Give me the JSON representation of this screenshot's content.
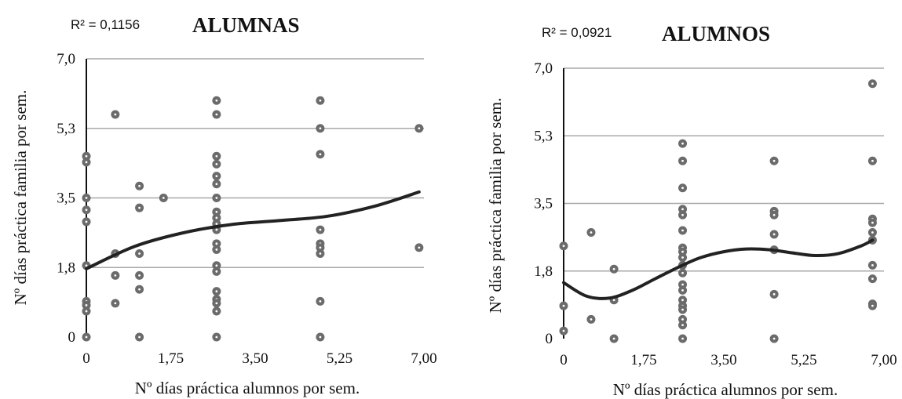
{
  "chart_data": [
    {
      "type": "scatter",
      "title": "ALUMNAS",
      "r2_label": "R² = 0,1156",
      "xlabel": "Nº días práctica alumnos por sem.",
      "ylabel": "Nº días práctica familia por sem.",
      "xlim": [
        0,
        7
      ],
      "ylim": [
        0,
        7
      ],
      "xticks": [
        "0",
        "1,75",
        "3,50",
        "5,25",
        "7,00"
      ],
      "xtick_values": [
        0,
        1.75,
        3.5,
        5.25,
        7
      ],
      "yticks": [
        "0",
        "1,8",
        "3,5",
        "5,3",
        "7,0"
      ],
      "ytick_values": [
        0,
        1.75,
        3.5,
        5.25,
        7
      ],
      "grid": "horizontal",
      "point_color": "#6b6b6b",
      "trend_color": "#222222",
      "points": [
        [
          0,
          4.55
        ],
        [
          0,
          4.4
        ],
        [
          0,
          3.5
        ],
        [
          0,
          3.2
        ],
        [
          0,
          2.9
        ],
        [
          0,
          1.8
        ],
        [
          0,
          0.9
        ],
        [
          0,
          0.8
        ],
        [
          0,
          0.65
        ],
        [
          0,
          0
        ],
        [
          0.6,
          5.6
        ],
        [
          0.6,
          2.1
        ],
        [
          0.6,
          1.55
        ],
        [
          0.6,
          0.85
        ],
        [
          1.1,
          3.8
        ],
        [
          1.1,
          3.25
        ],
        [
          1.1,
          2.1
        ],
        [
          1.1,
          1.55
        ],
        [
          1.1,
          1.2
        ],
        [
          1.1,
          0
        ],
        [
          1.6,
          3.5
        ],
        [
          2.7,
          5.95
        ],
        [
          2.7,
          5.6
        ],
        [
          2.7,
          4.55
        ],
        [
          2.7,
          4.35
        ],
        [
          2.7,
          4.05
        ],
        [
          2.7,
          3.85
        ],
        [
          2.7,
          3.5
        ],
        [
          2.7,
          3.15
        ],
        [
          2.7,
          3.0
        ],
        [
          2.7,
          2.85
        ],
        [
          2.7,
          2.7
        ],
        [
          2.7,
          2.35
        ],
        [
          2.7,
          2.2
        ],
        [
          2.7,
          1.8
        ],
        [
          2.7,
          1.65
        ],
        [
          2.7,
          1.15
        ],
        [
          2.7,
          0.95
        ],
        [
          2.7,
          0.85
        ],
        [
          2.7,
          0.65
        ],
        [
          2.7,
          0
        ],
        [
          4.85,
          5.95
        ],
        [
          4.85,
          5.25
        ],
        [
          4.85,
          4.6
        ],
        [
          4.85,
          2.7
        ],
        [
          4.85,
          2.35
        ],
        [
          4.85,
          2.25
        ],
        [
          4.85,
          2.1
        ],
        [
          4.85,
          0.9
        ],
        [
          4.85,
          0
        ],
        [
          6.9,
          5.25
        ],
        [
          6.9,
          2.25
        ]
      ],
      "trendline": [
        [
          0,
          1.72
        ],
        [
          1,
          2.28
        ],
        [
          2,
          2.62
        ],
        [
          3,
          2.83
        ],
        [
          4,
          2.93
        ],
        [
          5,
          3.04
        ],
        [
          6,
          3.3
        ],
        [
          6.9,
          3.65
        ]
      ]
    },
    {
      "type": "scatter",
      "title": "ALUMNOS",
      "r2_label": "R² = 0,0921",
      "xlabel": "Nº días práctica alumnos por sem.",
      "ylabel": "Nº días práctica familia por sem.",
      "xlim": [
        0,
        7
      ],
      "ylim": [
        0,
        7
      ],
      "xticks": [
        "0",
        "1,75",
        "3,50",
        "5,25",
        "7,00"
      ],
      "xtick_values": [
        0,
        1.75,
        3.5,
        5.25,
        7
      ],
      "yticks": [
        "0",
        "1,8",
        "3,5",
        "5,3",
        "7,0"
      ],
      "ytick_values": [
        0,
        1.75,
        3.5,
        5.25,
        7
      ],
      "grid": "horizontal",
      "point_color": "#6b6b6b",
      "trend_color": "#222222",
      "points": [
        [
          0,
          2.4
        ],
        [
          0,
          0.85
        ],
        [
          0,
          0.2
        ],
        [
          0.6,
          2.75
        ],
        [
          0.6,
          0.5
        ],
        [
          1.1,
          1.8
        ],
        [
          1.1,
          1.0
        ],
        [
          1.1,
          0
        ],
        [
          2.6,
          5.05
        ],
        [
          2.6,
          4.6
        ],
        [
          2.6,
          3.9
        ],
        [
          2.6,
          3.35
        ],
        [
          2.6,
          3.2
        ],
        [
          2.6,
          2.8
        ],
        [
          2.6,
          2.35
        ],
        [
          2.6,
          2.25
        ],
        [
          2.6,
          2.1
        ],
        [
          2.6,
          1.9
        ],
        [
          2.6,
          1.7
        ],
        [
          2.6,
          1.4
        ],
        [
          2.6,
          1.25
        ],
        [
          2.6,
          1.0
        ],
        [
          2.6,
          0.85
        ],
        [
          2.6,
          0.75
        ],
        [
          2.6,
          0.5
        ],
        [
          2.6,
          0.35
        ],
        [
          2.6,
          0
        ],
        [
          4.6,
          4.6
        ],
        [
          4.6,
          3.3
        ],
        [
          4.6,
          3.2
        ],
        [
          4.6,
          2.7
        ],
        [
          4.6,
          2.3
        ],
        [
          4.6,
          1.15
        ],
        [
          4.6,
          0
        ],
        [
          6.75,
          6.6
        ],
        [
          6.75,
          4.6
        ],
        [
          6.75,
          3.1
        ],
        [
          6.75,
          3.0
        ],
        [
          6.75,
          2.75
        ],
        [
          6.75,
          2.55
        ],
        [
          6.75,
          1.9
        ],
        [
          6.75,
          1.55
        ],
        [
          6.75,
          0.9
        ],
        [
          6.75,
          0.85
        ]
      ],
      "trendline": [
        [
          0,
          1.45
        ],
        [
          0.5,
          1.1
        ],
        [
          1,
          1.05
        ],
        [
          1.5,
          1.25
        ],
        [
          2,
          1.55
        ],
        [
          2.6,
          1.9
        ],
        [
          3,
          2.1
        ],
        [
          3.5,
          2.25
        ],
        [
          4,
          2.32
        ],
        [
          4.5,
          2.3
        ],
        [
          5,
          2.22
        ],
        [
          5.5,
          2.15
        ],
        [
          6,
          2.2
        ],
        [
          6.5,
          2.4
        ],
        [
          6.75,
          2.55
        ]
      ]
    }
  ]
}
